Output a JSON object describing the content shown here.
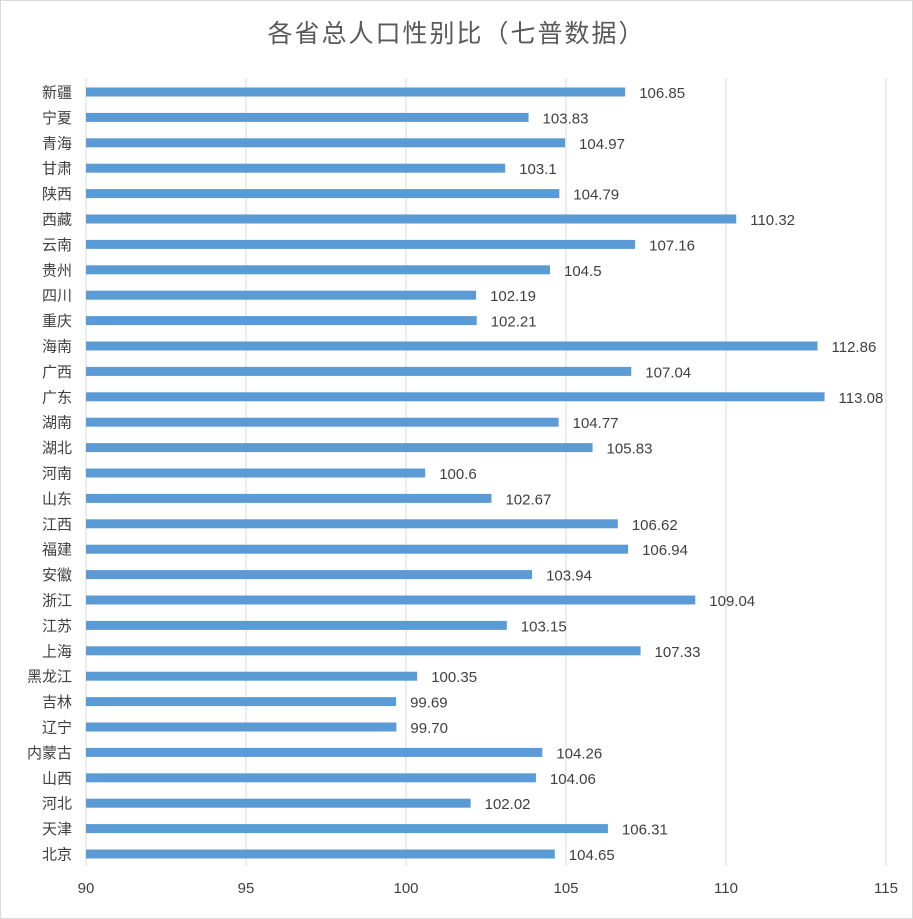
{
  "chart_data": {
    "type": "bar",
    "orientation": "horizontal",
    "title": "各省总人口性别比（七普数据）",
    "xlabel": "",
    "ylabel": "",
    "xlim": [
      90,
      115
    ],
    "xticks": [
      "90",
      "95",
      "100",
      "105",
      "110",
      "115"
    ],
    "grid": "vertical",
    "bar_color": "#5b9bd5",
    "categories": [
      "新疆",
      "宁夏",
      "青海",
      "甘肃",
      "陕西",
      "西藏",
      "云南",
      "贵州",
      "四川",
      "重庆",
      "海南",
      "广西",
      "广东",
      "湖南",
      "湖北",
      "河南",
      "山东",
      "江西",
      "福建",
      "安徽",
      "浙江",
      "江苏",
      "上海",
      "黑龙江",
      "吉林",
      "辽宁",
      "内蒙古",
      "山西",
      "河北",
      "天津",
      "北京"
    ],
    "values": [
      106.85,
      103.83,
      104.97,
      103.1,
      104.79,
      110.32,
      107.16,
      104.5,
      102.19,
      102.21,
      112.86,
      107.04,
      113.08,
      104.77,
      105.83,
      100.6,
      102.67,
      106.62,
      106.94,
      103.94,
      109.04,
      103.15,
      107.33,
      100.35,
      99.69,
      99.7,
      104.26,
      104.06,
      102.02,
      106.31,
      104.65
    ],
    "value_labels": [
      "106.85",
      "103.83",
      "104.97",
      "103.1",
      "104.79",
      "110.32",
      "107.16",
      "104.5",
      "102.19",
      "102.21",
      "112.86",
      "107.04",
      "113.08",
      "104.77",
      "105.83",
      "100.6",
      "102.67",
      "106.62",
      "106.94",
      "103.94",
      "109.04",
      "103.15",
      "107.33",
      "100.35",
      "99.69",
      "99.70",
      "104.26",
      "104.06",
      "102.02",
      "106.31",
      "104.65"
    ]
  }
}
